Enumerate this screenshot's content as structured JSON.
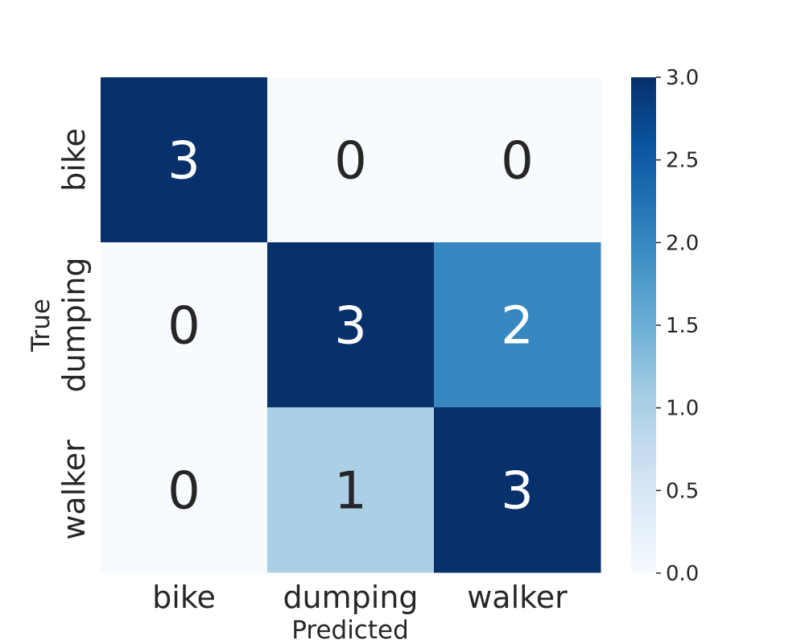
{
  "chart_data": {
    "type": "heatmap",
    "title": "",
    "xlabel": "Predicted",
    "ylabel": "True",
    "x_categories": [
      "bike",
      "dumping",
      "walker"
    ],
    "y_categories": [
      "bike",
      "dumping",
      "walker"
    ],
    "values": [
      [
        3,
        0,
        0
      ],
      [
        0,
        3,
        2
      ],
      [
        0,
        1,
        3
      ]
    ],
    "colormap": "Blues",
    "colorbar": {
      "min": 0.0,
      "max": 3.0,
      "ticks": [
        "0.0",
        "0.5",
        "1.0",
        "1.5",
        "2.0",
        "2.5",
        "3.0"
      ]
    },
    "annotations": true
  }
}
